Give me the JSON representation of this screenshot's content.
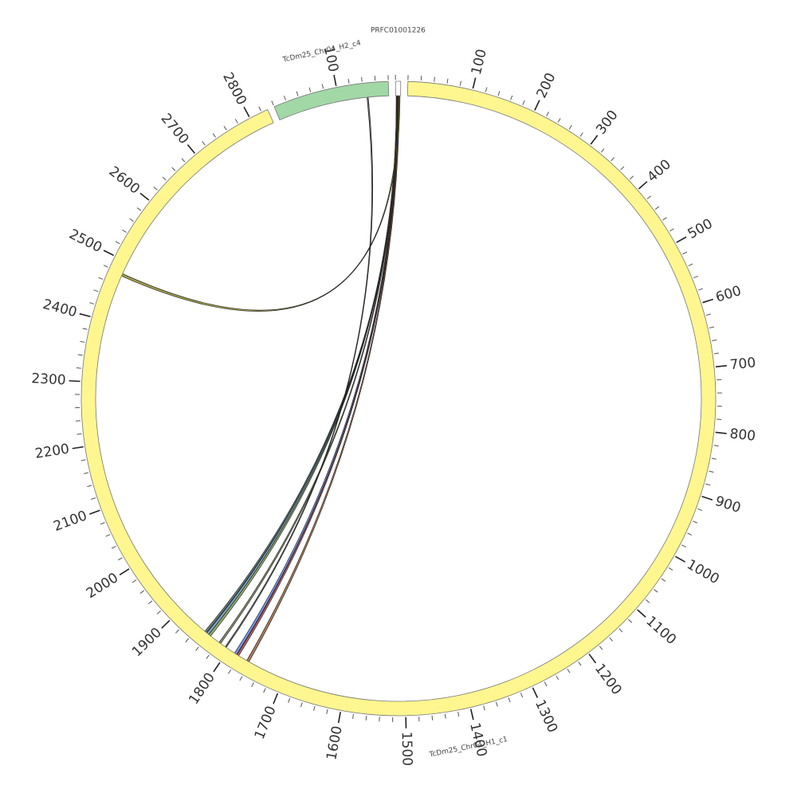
{
  "chart_data": {
    "type": "circos",
    "minor_tick_interval": 20,
    "segments": [
      {
        "name": "TcDm25_Chr04_H1_c1",
        "length": 2830,
        "color": "#fff68f",
        "ticks": [
          100,
          200,
          300,
          400,
          500,
          600,
          700,
          800,
          900,
          1000,
          1100,
          1200,
          1300,
          1400,
          1500,
          1600,
          1700,
          1800,
          1900,
          2000,
          2100,
          2200,
          2300,
          2400,
          2500,
          2600,
          2700,
          2800
        ]
      },
      {
        "name": "TcDm25_Chr04_H2_c4",
        "length": 180,
        "color": "#a1d8a6",
        "ticks": [
          100
        ]
      },
      {
        "name": "PRFC01001226",
        "length": 8,
        "color": "#ffffff",
        "ticks": []
      }
    ],
    "links": [
      {
        "source": "PRFC01001226",
        "source_start": 1,
        "source_end": 3,
        "target": "TcDm25_Chr04_H1_c1",
        "target_start": 1836,
        "target_end": 1840,
        "color": "#6b8e23"
      },
      {
        "source": "PRFC01001226",
        "source_start": 2,
        "source_end": 4,
        "target": "TcDm25_Chr04_H1_c1",
        "target_start": 1840,
        "target_end": 1844,
        "color": "#4682b4"
      },
      {
        "source": "PRFC01001226",
        "source_start": 3,
        "source_end": 5,
        "target": "TcDm25_Chr04_H1_c1",
        "target_start": 1845,
        "target_end": 1848,
        "color": "#2f4f4f"
      },
      {
        "source": "PRFC01001226",
        "source_start": 1,
        "source_end": 3,
        "target": "TcDm25_Chr04_H1_c1",
        "target_start": 1816,
        "target_end": 1819,
        "color": "#556b2f"
      },
      {
        "source": "PRFC01001226",
        "source_start": 2,
        "source_end": 4,
        "target": "TcDm25_Chr04_H1_c1",
        "target_start": 1785,
        "target_end": 1789,
        "color": "#4169e1"
      },
      {
        "source": "PRFC01001226",
        "source_start": 3,
        "source_end": 5,
        "target": "TcDm25_Chr04_H1_c1",
        "target_start": 1781,
        "target_end": 1784,
        "color": "#b22222"
      },
      {
        "source": "PRFC01001226",
        "source_start": 4,
        "source_end": 6,
        "target": "TcDm25_Chr04_H1_c1",
        "target_start": 1762,
        "target_end": 1766,
        "color": "#8b4513"
      },
      {
        "source": "TcDm25_Chr04_H2_c4",
        "source_start": 145,
        "source_end": 147,
        "target": "TcDm25_Chr04_H1_c1",
        "target_start": 1805,
        "target_end": 1807,
        "color": "#333333"
      },
      {
        "source": "PRFC01001226",
        "source_start": 5,
        "source_end": 7,
        "target": "TcDm25_Chr04_H1_c1",
        "target_start": 2476,
        "target_end": 2480,
        "color": "#808000"
      }
    ]
  }
}
